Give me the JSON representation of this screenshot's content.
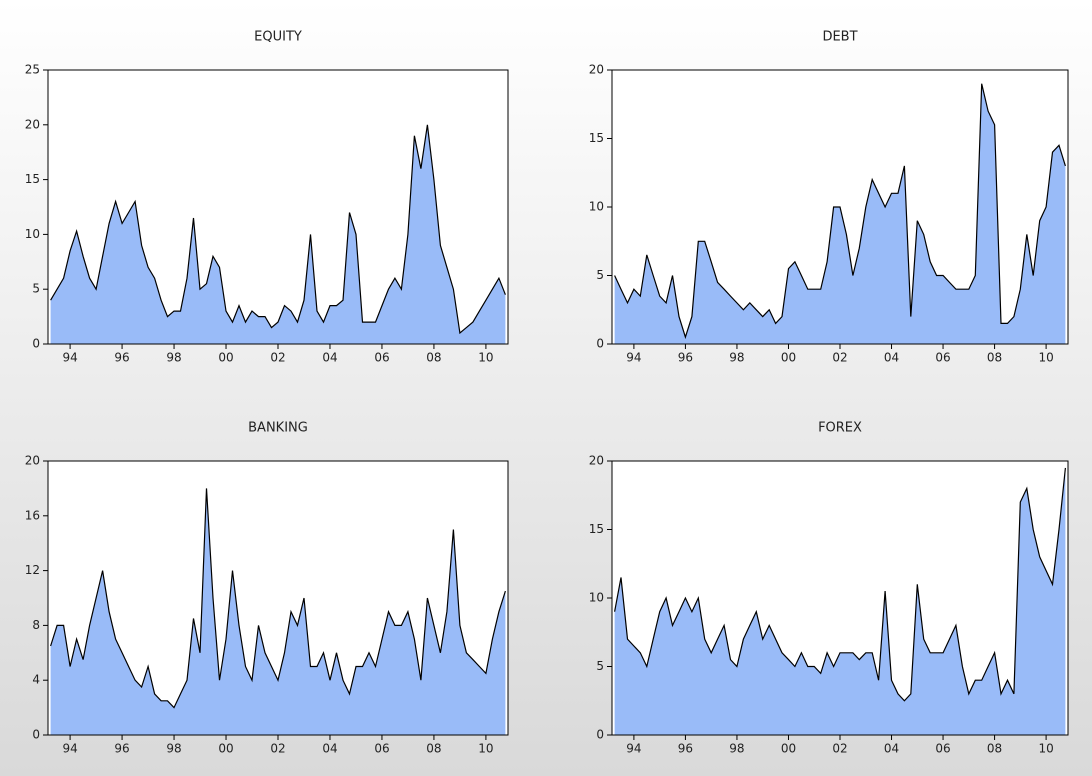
{
  "chart_data": [
    {
      "type": "area",
      "title": "EQUITY",
      "x": [
        1993.25,
        1993.5,
        1993.75,
        1994,
        1994.25,
        1994.5,
        1994.75,
        1995,
        1995.25,
        1995.5,
        1995.75,
        1996,
        1996.25,
        1996.5,
        1996.75,
        1997,
        1997.25,
        1997.5,
        1997.75,
        1998,
        1998.25,
        1998.5,
        1998.75,
        1999,
        1999.25,
        1999.5,
        1999.75,
        2000,
        2000.25,
        2000.5,
        2000.75,
        2001,
        2001.25,
        2001.5,
        2001.75,
        2002,
        2002.25,
        2002.5,
        2002.75,
        2003,
        2003.25,
        2003.5,
        2003.75,
        2004,
        2004.25,
        2004.5,
        2004.75,
        2005,
        2005.25,
        2005.5,
        2005.75,
        2006,
        2006.25,
        2006.5,
        2006.75,
        2007,
        2007.25,
        2007.5,
        2007.75,
        2008,
        2008.25,
        2008.5,
        2008.75,
        2009,
        2009.25,
        2009.5,
        2009.75,
        2010,
        2010.25,
        2010.5,
        2010.75
      ],
      "series": [
        {
          "color": "#99bbf8",
          "values": [
            4,
            5,
            6,
            8.5,
            10.3,
            8,
            6,
            5,
            8,
            11,
            13,
            11,
            12,
            13,
            9,
            7,
            6,
            4,
            2.5,
            3,
            3,
            6,
            11.5,
            5,
            5.5,
            8,
            7,
            3,
            2,
            3.5,
            2,
            3,
            2.5,
            2.5,
            1.5,
            2,
            3.5,
            3,
            2,
            4,
            10,
            3,
            2,
            3.5,
            3.5,
            4,
            12,
            10,
            2,
            2,
            2,
            3.5,
            5,
            6,
            5,
            10,
            19,
            16,
            20,
            15,
            9,
            7,
            5,
            1,
            1.5,
            2,
            3,
            4,
            5,
            6,
            4.5
          ]
        }
      ],
      "xlim": [
        1993.15,
        2010.85
      ],
      "ylim": [
        0,
        25
      ],
      "yticks": [
        0,
        5,
        10,
        15,
        20,
        25
      ],
      "xticks": [
        {
          "value": 1994,
          "label": "94"
        },
        {
          "value": 1996,
          "label": "96"
        },
        {
          "value": 1998,
          "label": "98"
        },
        {
          "value": 2000,
          "label": "00"
        },
        {
          "value": 2002,
          "label": "02"
        },
        {
          "value": 2004,
          "label": "04"
        },
        {
          "value": 2006,
          "label": "06"
        },
        {
          "value": 2008,
          "label": "08"
        },
        {
          "value": 2010,
          "label": "10"
        }
      ]
    },
    {
      "type": "area",
      "title": "DEBT",
      "x": [
        1993.25,
        1993.5,
        1993.75,
        1994,
        1994.25,
        1994.5,
        1994.75,
        1995,
        1995.25,
        1995.5,
        1995.75,
        1996,
        1996.25,
        1996.5,
        1996.75,
        1997,
        1997.25,
        1997.5,
        1997.75,
        1998,
        1998.25,
        1998.5,
        1998.75,
        1999,
        1999.25,
        1999.5,
        1999.75,
        2000,
        2000.25,
        2000.5,
        2000.75,
        2001,
        2001.25,
        2001.5,
        2001.75,
        2002,
        2002.25,
        2002.5,
        2002.75,
        2003,
        2003.25,
        2003.5,
        2003.75,
        2004,
        2004.25,
        2004.5,
        2004.75,
        2005,
        2005.25,
        2005.5,
        2005.75,
        2006,
        2006.25,
        2006.5,
        2006.75,
        2007,
        2007.25,
        2007.5,
        2007.75,
        2008,
        2008.25,
        2008.5,
        2008.75,
        2009,
        2009.25,
        2009.5,
        2009.75,
        2010,
        2010.25,
        2010.5,
        2010.75
      ],
      "series": [
        {
          "color": "#99bbf8",
          "values": [
            5,
            4,
            3,
            4,
            3.5,
            6.5,
            5,
            3.5,
            3,
            5,
            2,
            0.5,
            2,
            7.5,
            7.5,
            6,
            4.5,
            4,
            3.5,
            3,
            2.5,
            3,
            2.5,
            2,
            2.5,
            1.5,
            2,
            5.5,
            6,
            5,
            4,
            4,
            4,
            6,
            10,
            10,
            8,
            5,
            7,
            10,
            12,
            11,
            10,
            11,
            11,
            13,
            2,
            9,
            8,
            6,
            5,
            5,
            4.5,
            4,
            4,
            4,
            5,
            19,
            17,
            16,
            1.5,
            1.5,
            2,
            4,
            8,
            5,
            9,
            10,
            14,
            14.5,
            13
          ]
        }
      ],
      "xlim": [
        1993.15,
        2010.85
      ],
      "ylim": [
        0,
        20
      ],
      "yticks": [
        0,
        5,
        10,
        15,
        20
      ],
      "xticks": [
        {
          "value": 1994,
          "label": "94"
        },
        {
          "value": 1996,
          "label": "96"
        },
        {
          "value": 1998,
          "label": "98"
        },
        {
          "value": 2000,
          "label": "00"
        },
        {
          "value": 2002,
          "label": "02"
        },
        {
          "value": 2004,
          "label": "04"
        },
        {
          "value": 2006,
          "label": "06"
        },
        {
          "value": 2008,
          "label": "08"
        },
        {
          "value": 2010,
          "label": "10"
        }
      ]
    },
    {
      "type": "area",
      "title": "BANKING",
      "x": [
        1993.25,
        1993.5,
        1993.75,
        1994,
        1994.25,
        1994.5,
        1994.75,
        1995,
        1995.25,
        1995.5,
        1995.75,
        1996,
        1996.25,
        1996.5,
        1996.75,
        1997,
        1997.25,
        1997.5,
        1997.75,
        1998,
        1998.25,
        1998.5,
        1998.75,
        1999,
        1999.25,
        1999.5,
        1999.75,
        2000,
        2000.25,
        2000.5,
        2000.75,
        2001,
        2001.25,
        2001.5,
        2001.75,
        2002,
        2002.25,
        2002.5,
        2002.75,
        2003,
        2003.25,
        2003.5,
        2003.75,
        2004,
        2004.25,
        2004.5,
        2004.75,
        2005,
        2005.25,
        2005.5,
        2005.75,
        2006,
        2006.25,
        2006.5,
        2006.75,
        2007,
        2007.25,
        2007.5,
        2007.75,
        2008,
        2008.25,
        2008.5,
        2008.75,
        2009,
        2009.25,
        2009.5,
        2009.75,
        2010,
        2010.25,
        2010.5,
        2010.75
      ],
      "series": [
        {
          "color": "#99bbf8",
          "values": [
            6.5,
            8,
            8,
            5,
            7,
            5.5,
            8,
            10,
            12,
            9,
            7,
            6,
            5,
            4,
            3.5,
            5,
            3,
            2.5,
            2.5,
            2,
            3,
            4,
            8.5,
            6,
            18,
            10,
            4,
            7,
            12,
            8,
            5,
            4,
            8,
            6,
            5,
            4,
            6,
            9,
            8,
            10,
            5,
            5,
            6,
            4,
            6,
            4,
            3,
            5,
            5,
            6,
            5,
            7,
            9,
            8,
            8,
            9,
            7,
            4,
            10,
            8,
            6,
            9,
            15,
            8,
            6,
            5.5,
            5,
            4.5,
            7,
            9,
            10.5
          ]
        }
      ],
      "xlim": [
        1993.15,
        2010.85
      ],
      "ylim": [
        0,
        20
      ],
      "yticks": [
        0,
        4,
        8,
        12,
        16,
        20
      ],
      "xticks": [
        {
          "value": 1994,
          "label": "94"
        },
        {
          "value": 1996,
          "label": "96"
        },
        {
          "value": 1998,
          "label": "98"
        },
        {
          "value": 2000,
          "label": "00"
        },
        {
          "value": 2002,
          "label": "02"
        },
        {
          "value": 2004,
          "label": "04"
        },
        {
          "value": 2006,
          "label": "06"
        },
        {
          "value": 2008,
          "label": "08"
        },
        {
          "value": 2010,
          "label": "10"
        }
      ]
    },
    {
      "type": "area",
      "title": "FOREX",
      "x": [
        1993.25,
        1993.5,
        1993.75,
        1994,
        1994.25,
        1994.5,
        1994.75,
        1995,
        1995.25,
        1995.5,
        1995.75,
        1996,
        1996.25,
        1996.5,
        1996.75,
        1997,
        1997.25,
        1997.5,
        1997.75,
        1998,
        1998.25,
        1998.5,
        1998.75,
        1999,
        1999.25,
        1999.5,
        1999.75,
        2000,
        2000.25,
        2000.5,
        2000.75,
        2001,
        2001.25,
        2001.5,
        2001.75,
        2002,
        2002.25,
        2002.5,
        2002.75,
        2003,
        2003.25,
        2003.5,
        2003.75,
        2004,
        2004.25,
        2004.5,
        2004.75,
        2005,
        2005.25,
        2005.5,
        2005.75,
        2006,
        2006.25,
        2006.5,
        2006.75,
        2007,
        2007.25,
        2007.5,
        2007.75,
        2008,
        2008.25,
        2008.5,
        2008.75,
        2009,
        2009.25,
        2009.5,
        2009.75,
        2010,
        2010.25,
        2010.5,
        2010.75
      ],
      "series": [
        {
          "color": "#99bbf8",
          "values": [
            9,
            11.5,
            7,
            6.5,
            6,
            5,
            7,
            9,
            10,
            8,
            9,
            10,
            9,
            10,
            7,
            6,
            7,
            8,
            5.5,
            5,
            7,
            8,
            9,
            7,
            8,
            7,
            6,
            5.5,
            5,
            6,
            5,
            5,
            4.5,
            6,
            5,
            6,
            6,
            6,
            5.5,
            6,
            6,
            4,
            10.5,
            4,
            3,
            2.5,
            3,
            11,
            7,
            6,
            6,
            6,
            7,
            8,
            5,
            3,
            4,
            4,
            5,
            6,
            3,
            4,
            3,
            17,
            18,
            15,
            13,
            12,
            11,
            15,
            19.5
          ]
        }
      ],
      "xlim": [
        1993.15,
        2010.85
      ],
      "ylim": [
        0,
        20
      ],
      "yticks": [
        0,
        5,
        10,
        15,
        20
      ],
      "xticks": [
        {
          "value": 1994,
          "label": "94"
        },
        {
          "value": 1996,
          "label": "96"
        },
        {
          "value": 1998,
          "label": "98"
        },
        {
          "value": 2000,
          "label": "00"
        },
        {
          "value": 2002,
          "label": "02"
        },
        {
          "value": 2004,
          "label": "04"
        },
        {
          "value": 2006,
          "label": "06"
        },
        {
          "value": 2008,
          "label": "08"
        },
        {
          "value": 2010,
          "label": "10"
        }
      ]
    }
  ]
}
